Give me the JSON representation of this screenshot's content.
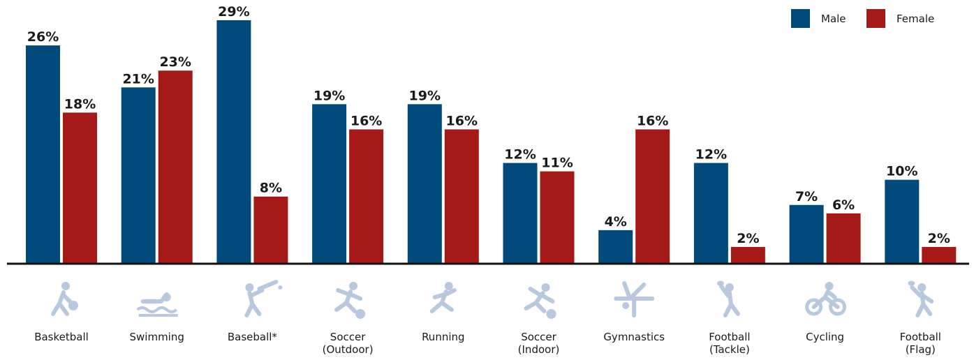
{
  "chart_data": {
    "type": "bar",
    "categories": [
      [
        "Basketball"
      ],
      [
        "Swimming"
      ],
      [
        "Baseball*"
      ],
      [
        "Soccer",
        "(Outdoor)"
      ],
      [
        "Running"
      ],
      [
        "Soccer",
        "(Indoor)"
      ],
      [
        "Gymnastics"
      ],
      [
        "Football",
        "(Tackle)"
      ],
      [
        "Cycling"
      ],
      [
        "Football",
        "(Flag)"
      ]
    ],
    "category_icons": [
      "basketball-icon",
      "swimming-icon",
      "baseball-icon",
      "soccer-outdoor-icon",
      "running-icon",
      "soccer-indoor-icon",
      "gymnastics-icon",
      "football-tackle-icon",
      "cycling-icon",
      "football-flag-icon"
    ],
    "series": [
      {
        "name": "Male",
        "color": "#004a7c",
        "values": [
          26,
          21,
          29,
          19,
          19,
          12,
          4,
          12,
          7,
          10
        ],
        "labels": [
          "26%",
          "21%",
          "29%",
          "19%",
          "19%",
          "12%",
          "4%",
          "12%",
          "7%",
          "10%"
        ]
      },
      {
        "name": "Female",
        "color": "#a51916",
        "values": [
          18,
          23,
          8,
          16,
          16,
          11,
          16,
          2,
          6,
          2
        ],
        "labels": [
          "18%",
          "23%",
          "8%",
          "16%",
          "16%",
          "11%",
          "16%",
          "2%",
          "6%",
          "2%"
        ]
      }
    ],
    "ylim": [
      0,
      29
    ],
    "title": "",
    "xlabel": "",
    "ylabel": "",
    "legend_position": "top-right",
    "icon_color": "#b8c8de",
    "axis_color": "#111111"
  }
}
